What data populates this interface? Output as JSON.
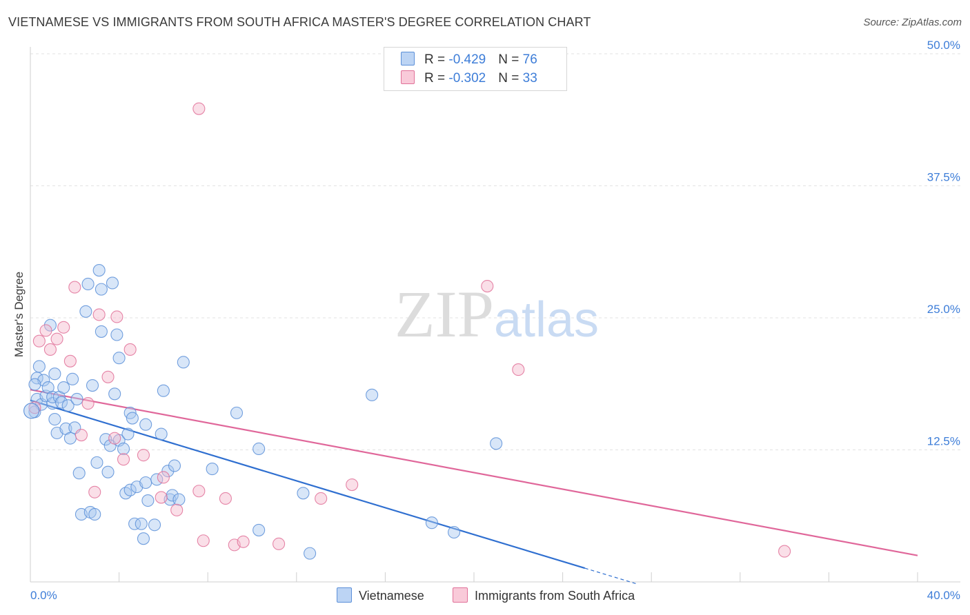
{
  "chart_data": {
    "type": "scatter",
    "title": "VIETNAMESE VS IMMIGRANTS FROM SOUTH AFRICA MASTER'S DEGREE CORRELATION CHART",
    "source": "Source: ZipAtlas.com",
    "watermark": "ZIPatlas",
    "xlabel": "",
    "ylabel": "Master's Degree",
    "xlim": [
      0,
      40
    ],
    "ylim": [
      0,
      50
    ],
    "x_tick_labels": [
      "0.0%",
      "40.0%"
    ],
    "y_tick_labels": [
      "12.5%",
      "25.0%",
      "37.5%",
      "50.0%"
    ],
    "y_ticks": [
      12.5,
      25.0,
      37.5,
      50.0
    ],
    "series": [
      {
        "name": "Vietnamese",
        "color": "#5b8fd8",
        "fill": "#a9c8f0",
        "r_label": "R = ",
        "r_value": "-0.429",
        "n_label": "N = ",
        "n_value": "76",
        "trend": {
          "x0": 0.0,
          "y0": 17.2,
          "x1": 25.0,
          "y1": 1.3,
          "dash_to_x": 27.3
        },
        "points": [
          [
            0.2,
            16.1
          ],
          [
            0.3,
            17.3
          ],
          [
            0.3,
            19.3
          ],
          [
            0.4,
            20.4
          ],
          [
            0.5,
            16.8
          ],
          [
            0.6,
            19.1
          ],
          [
            0.7,
            17.6
          ],
          [
            0.8,
            18.4
          ],
          [
            0.9,
            24.3
          ],
          [
            1.0,
            16.9
          ],
          [
            1.0,
            17.5
          ],
          [
            1.1,
            19.7
          ],
          [
            1.2,
            14.1
          ],
          [
            1.3,
            17.5
          ],
          [
            1.4,
            17.0
          ],
          [
            1.5,
            18.4
          ],
          [
            1.6,
            14.5
          ],
          [
            1.7,
            16.7
          ],
          [
            1.8,
            13.6
          ],
          [
            1.9,
            19.2
          ],
          [
            2.0,
            14.6
          ],
          [
            2.1,
            17.3
          ],
          [
            2.2,
            10.3
          ],
          [
            2.3,
            6.4
          ],
          [
            2.5,
            25.6
          ],
          [
            2.6,
            28.2
          ],
          [
            2.7,
            6.6
          ],
          [
            2.8,
            18.6
          ],
          [
            2.9,
            6.4
          ],
          [
            3.0,
            11.3
          ],
          [
            3.1,
            29.5
          ],
          [
            3.2,
            23.7
          ],
          [
            3.2,
            27.7
          ],
          [
            3.4,
            13.5
          ],
          [
            3.5,
            10.4
          ],
          [
            3.6,
            12.9
          ],
          [
            3.7,
            28.3
          ],
          [
            3.8,
            17.8
          ],
          [
            3.9,
            23.4
          ],
          [
            4.0,
            13.4
          ],
          [
            4.0,
            21.2
          ],
          [
            4.2,
            12.6
          ],
          [
            4.3,
            8.4
          ],
          [
            4.4,
            14.0
          ],
          [
            4.5,
            8.7
          ],
          [
            4.5,
            16.0
          ],
          [
            4.6,
            15.5
          ],
          [
            4.7,
            5.5
          ],
          [
            4.8,
            9.0
          ],
          [
            5.0,
            5.5
          ],
          [
            5.1,
            4.1
          ],
          [
            5.2,
            9.4
          ],
          [
            5.2,
            14.9
          ],
          [
            5.3,
            7.7
          ],
          [
            5.6,
            5.4
          ],
          [
            5.7,
            9.7
          ],
          [
            5.9,
            14.0
          ],
          [
            6.0,
            18.1
          ],
          [
            6.2,
            10.5
          ],
          [
            6.3,
            7.8
          ],
          [
            6.4,
            8.2
          ],
          [
            6.5,
            11.0
          ],
          [
            6.7,
            7.8
          ],
          [
            6.9,
            20.8
          ],
          [
            8.2,
            10.7
          ],
          [
            9.3,
            16.0
          ],
          [
            10.3,
            12.6
          ],
          [
            10.3,
            4.9
          ],
          [
            12.3,
            8.4
          ],
          [
            12.6,
            2.7
          ],
          [
            15.4,
            17.7
          ],
          [
            18.1,
            5.6
          ],
          [
            19.1,
            4.7
          ],
          [
            21.0,
            13.1
          ],
          [
            0.2,
            18.7
          ],
          [
            1.1,
            15.4
          ]
        ]
      },
      {
        "name": "Immigrants from South Africa",
        "color": "#e07098",
        "fill": "#f5b8cc",
        "r_label": "R = ",
        "r_value": "-0.302",
        "n_label": "N = ",
        "n_value": "33",
        "trend": {
          "x0": 0.0,
          "y0": 18.2,
          "x1": 40.0,
          "y1": 2.5
        },
        "points": [
          [
            0.2,
            16.5
          ],
          [
            0.4,
            22.8
          ],
          [
            0.7,
            23.8
          ],
          [
            0.9,
            22.0
          ],
          [
            1.2,
            23.0
          ],
          [
            1.5,
            24.1
          ],
          [
            1.8,
            20.9
          ],
          [
            2.0,
            27.9
          ],
          [
            2.3,
            13.9
          ],
          [
            2.6,
            16.9
          ],
          [
            2.9,
            8.5
          ],
          [
            3.1,
            25.3
          ],
          [
            3.5,
            19.4
          ],
          [
            3.8,
            13.6
          ],
          [
            3.9,
            25.1
          ],
          [
            4.2,
            11.6
          ],
          [
            4.5,
            22.0
          ],
          [
            5.1,
            12.0
          ],
          [
            5.9,
            8.0
          ],
          [
            6.0,
            9.9
          ],
          [
            6.6,
            6.8
          ],
          [
            7.6,
            8.6
          ],
          [
            7.8,
            3.9
          ],
          [
            7.6,
            44.8
          ],
          [
            8.8,
            7.9
          ],
          [
            9.2,
            3.5
          ],
          [
            9.6,
            3.8
          ],
          [
            11.2,
            3.6
          ],
          [
            13.1,
            7.9
          ],
          [
            14.5,
            9.2
          ],
          [
            20.6,
            28.0
          ],
          [
            22.0,
            20.1
          ],
          [
            34.0,
            2.9
          ]
        ]
      }
    ]
  }
}
